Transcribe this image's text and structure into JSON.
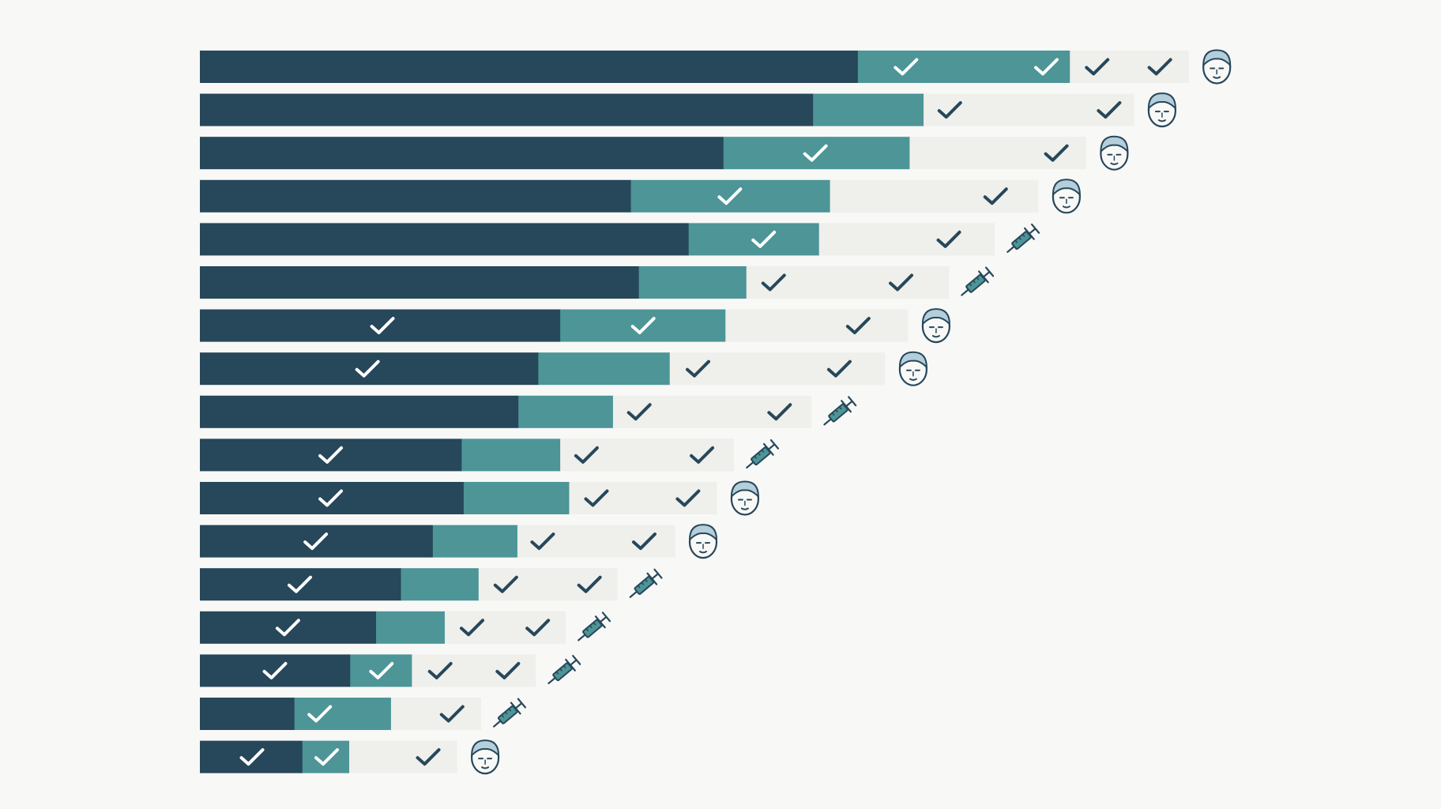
{
  "colors": {
    "background": "#f8f8f7",
    "dark": "#27475a",
    "mid": "#4d9597",
    "light": "#efefeb",
    "check_on_dark": "#ffffff",
    "check_on_light": "#27475a",
    "icon_stroke": "#27475a",
    "face_hair": "#b4cfdb",
    "syringe_fill": "#4d9597"
  },
  "chart_data": {
    "type": "bar",
    "orientation": "horizontal",
    "stacked": true,
    "title": "",
    "xlabel": "",
    "ylabel": "",
    "xlim": [
      0,
      100
    ],
    "grid": false,
    "legend": "none",
    "series": [
      {
        "color": "dark",
        "values": [
          66.1,
          61.6,
          52.6,
          43.3,
          49.1,
          44.1,
          36.2,
          34.0,
          32.0,
          26.3,
          26.5,
          23.4,
          20.2,
          17.7,
          15.1,
          9.5,
          10.3
        ]
      },
      {
        "color": "mid",
        "values": [
          21.3,
          11.1,
          18.7,
          20.0,
          13.1,
          10.8,
          16.6,
          13.2,
          9.5,
          9.9,
          10.6,
          8.5,
          7.8,
          6.9,
          6.2,
          9.7,
          4.7
        ]
      },
      {
        "color": "light",
        "values": [
          11.9,
          21.1,
          17.7,
          20.9,
          17.6,
          20.3,
          18.3,
          21.6,
          19.9,
          17.4,
          14.8,
          15.8,
          13.9,
          12.1,
          12.4,
          9.0,
          10.8
        ]
      }
    ],
    "rows": [
      {
        "icon": "face",
        "checks": [
          {
            "pos": 70.9,
            "on": "dark"
          },
          {
            "pos": 85.0,
            "on": "mid"
          },
          {
            "pos": 90.1,
            "on": "light"
          },
          {
            "pos": 96.4,
            "on": "light"
          }
        ]
      },
      {
        "icon": "face",
        "checks": [
          {
            "pos": 75.3,
            "on": "light"
          },
          {
            "pos": 91.3,
            "on": "light"
          }
        ]
      },
      {
        "icon": "face",
        "checks": [
          {
            "pos": 61.8,
            "on": "mid"
          },
          {
            "pos": 86.0,
            "on": "light"
          }
        ]
      },
      {
        "icon": "face",
        "checks": [
          {
            "pos": 53.2,
            "on": "mid"
          },
          {
            "pos": 79.9,
            "on": "light"
          }
        ]
      },
      {
        "icon": "syringe",
        "checks": [
          {
            "pos": 56.6,
            "on": "mid"
          },
          {
            "pos": 75.2,
            "on": "light"
          }
        ]
      },
      {
        "icon": "syringe",
        "checks": [
          {
            "pos": 57.6,
            "on": "light"
          },
          {
            "pos": 70.4,
            "on": "light"
          }
        ]
      },
      {
        "icon": "face",
        "checks": [
          {
            "pos": 18.3,
            "on": "dark"
          },
          {
            "pos": 44.5,
            "on": "mid"
          },
          {
            "pos": 66.1,
            "on": "light"
          }
        ]
      },
      {
        "icon": "face",
        "checks": [
          {
            "pos": 16.8,
            "on": "dark"
          },
          {
            "pos": 50.0,
            "on": "light"
          },
          {
            "pos": 64.2,
            "on": "light"
          }
        ]
      },
      {
        "icon": "syringe",
        "checks": [
          {
            "pos": 44.1,
            "on": "light"
          },
          {
            "pos": 58.2,
            "on": "light"
          }
        ]
      },
      {
        "icon": "syringe",
        "checks": [
          {
            "pos": 13.1,
            "on": "dark"
          },
          {
            "pos": 38.8,
            "on": "light"
          },
          {
            "pos": 50.4,
            "on": "light"
          }
        ]
      },
      {
        "icon": "face",
        "checks": [
          {
            "pos": 13.1,
            "on": "dark"
          },
          {
            "pos": 39.8,
            "on": "light"
          },
          {
            "pos": 49.0,
            "on": "light"
          }
        ]
      },
      {
        "icon": "face",
        "checks": [
          {
            "pos": 11.6,
            "on": "dark"
          },
          {
            "pos": 34.4,
            "on": "light"
          },
          {
            "pos": 44.6,
            "on": "light"
          }
        ]
      },
      {
        "icon": "syringe",
        "checks": [
          {
            "pos": 10.0,
            "on": "dark"
          },
          {
            "pos": 30.7,
            "on": "light"
          },
          {
            "pos": 39.1,
            "on": "light"
          }
        ]
      },
      {
        "icon": "syringe",
        "checks": [
          {
            "pos": 8.8,
            "on": "dark"
          },
          {
            "pos": 27.3,
            "on": "light"
          },
          {
            "pos": 33.9,
            "on": "light"
          }
        ]
      },
      {
        "icon": "syringe",
        "checks": [
          {
            "pos": 7.5,
            "on": "dark"
          },
          {
            "pos": 18.2,
            "on": "mid"
          },
          {
            "pos": 24.1,
            "on": "light"
          },
          {
            "pos": 30.9,
            "on": "light"
          }
        ]
      },
      {
        "icon": "syringe",
        "checks": [
          {
            "pos": 12.0,
            "on": "mid"
          },
          {
            "pos": 25.3,
            "on": "light"
          }
        ]
      },
      {
        "icon": "face",
        "checks": [
          {
            "pos": 5.2,
            "on": "dark"
          },
          {
            "pos": 12.7,
            "on": "mid"
          },
          {
            "pos": 22.9,
            "on": "light"
          }
        ]
      }
    ]
  }
}
